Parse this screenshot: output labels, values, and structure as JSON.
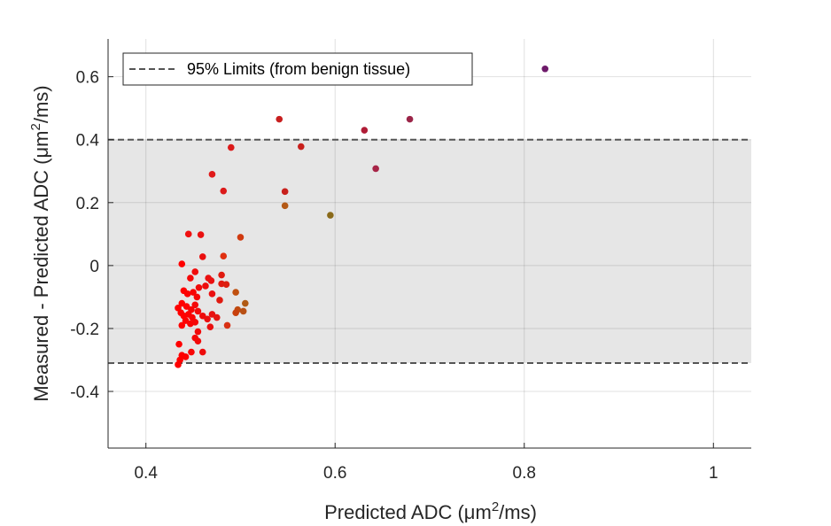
{
  "chart_data": {
    "type": "scatter",
    "title": "",
    "xlabel": {
      "pre": "Predicted ADC (μm",
      "sup": "2",
      "post": "/ms)"
    },
    "ylabel": {
      "pre": "Measured - Predicted ADC (μm",
      "sup": "2",
      "post": "/ms)"
    },
    "xlim": [
      0.36,
      1.04
    ],
    "ylim": [
      -0.58,
      0.72
    ],
    "x_ticks": [
      {
        "value": 0.4,
        "label": "0.4"
      },
      {
        "value": 0.6,
        "label": "0.6"
      },
      {
        "value": 0.8,
        "label": "0.8"
      },
      {
        "value": 1.0,
        "label": "1"
      }
    ],
    "y_ticks": [
      {
        "value": -0.4,
        "label": "-0.4"
      },
      {
        "value": -0.2,
        "label": "-0.2"
      },
      {
        "value": 0.0,
        "label": "0"
      },
      {
        "value": 0.2,
        "label": "0.2"
      },
      {
        "value": 0.4,
        "label": "0.4"
      },
      {
        "value": 0.6,
        "label": "0.6"
      }
    ],
    "grid": true,
    "limits": {
      "upper": 0.4,
      "lower": -0.31,
      "band_color": "#e6e6e6",
      "line_color": "#555555"
    },
    "legend": {
      "position": "top-left",
      "label": "95% Limits (from benign tissue)"
    },
    "colors": {
      "low": "#ff0000",
      "high": "#7a1a6e"
    },
    "points": [
      {
        "x": 0.822,
        "y": 0.625,
        "c": "#6e1a6a"
      },
      {
        "x": 0.679,
        "y": 0.465,
        "c": "#9b2548"
      },
      {
        "x": 0.631,
        "y": 0.43,
        "c": "#b01c36"
      },
      {
        "x": 0.643,
        "y": 0.308,
        "c": "#a72547"
      },
      {
        "x": 0.541,
        "y": 0.465,
        "c": "#c81f1f"
      },
      {
        "x": 0.564,
        "y": 0.378,
        "c": "#c8201c"
      },
      {
        "x": 0.547,
        "y": 0.235,
        "c": "#c8201c"
      },
      {
        "x": 0.547,
        "y": 0.19,
        "c": "#b45a16"
      },
      {
        "x": 0.595,
        "y": 0.16,
        "c": "#8a6a1a"
      },
      {
        "x": 0.49,
        "y": 0.375,
        "c": "#dc1a1a"
      },
      {
        "x": 0.47,
        "y": 0.29,
        "c": "#e01a1a"
      },
      {
        "x": 0.482,
        "y": 0.237,
        "c": "#dc1a1a"
      },
      {
        "x": 0.445,
        "y": 0.1,
        "c": "#f01010"
      },
      {
        "x": 0.458,
        "y": 0.098,
        "c": "#ea1010"
      },
      {
        "x": 0.5,
        "y": 0.09,
        "c": "#d03a10"
      },
      {
        "x": 0.438,
        "y": 0.005,
        "c": "#ff0000"
      },
      {
        "x": 0.482,
        "y": 0.03,
        "c": "#e03010"
      },
      {
        "x": 0.46,
        "y": 0.028,
        "c": "#ea1010"
      },
      {
        "x": 0.452,
        "y": -0.02,
        "c": "#f00c0c"
      },
      {
        "x": 0.447,
        "y": -0.04,
        "c": "#f50808"
      },
      {
        "x": 0.466,
        "y": -0.04,
        "c": "#ea1010"
      },
      {
        "x": 0.469,
        "y": -0.048,
        "c": "#ea1010"
      },
      {
        "x": 0.48,
        "y": -0.03,
        "c": "#e01a10"
      },
      {
        "x": 0.48,
        "y": -0.058,
        "c": "#e01a10"
      },
      {
        "x": 0.485,
        "y": -0.06,
        "c": "#dc2010"
      },
      {
        "x": 0.463,
        "y": -0.065,
        "c": "#ee0c0c"
      },
      {
        "x": 0.456,
        "y": -0.07,
        "c": "#f00a0a"
      },
      {
        "x": 0.44,
        "y": -0.08,
        "c": "#ff0000"
      },
      {
        "x": 0.444,
        "y": -0.09,
        "c": "#fc0202"
      },
      {
        "x": 0.45,
        "y": -0.085,
        "c": "#f80505"
      },
      {
        "x": 0.454,
        "y": -0.1,
        "c": "#f50808"
      },
      {
        "x": 0.47,
        "y": -0.09,
        "c": "#ea1010"
      },
      {
        "x": 0.495,
        "y": -0.085,
        "c": "#c05010"
      },
      {
        "x": 0.505,
        "y": -0.12,
        "c": "#b05a14"
      },
      {
        "x": 0.497,
        "y": -0.14,
        "c": "#c04a10"
      },
      {
        "x": 0.503,
        "y": -0.145,
        "c": "#b85014"
      },
      {
        "x": 0.495,
        "y": -0.15,
        "c": "#c8400c"
      },
      {
        "x": 0.478,
        "y": -0.11,
        "c": "#e01a10"
      },
      {
        "x": 0.438,
        "y": -0.12,
        "c": "#ff0000"
      },
      {
        "x": 0.443,
        "y": -0.13,
        "c": "#fc0202"
      },
      {
        "x": 0.448,
        "y": -0.14,
        "c": "#f80505"
      },
      {
        "x": 0.452,
        "y": -0.125,
        "c": "#f50808"
      },
      {
        "x": 0.434,
        "y": -0.135,
        "c": "#ff0000"
      },
      {
        "x": 0.437,
        "y": -0.15,
        "c": "#ff0000"
      },
      {
        "x": 0.44,
        "y": -0.16,
        "c": "#ff0000"
      },
      {
        "x": 0.445,
        "y": -0.155,
        "c": "#fc0202"
      },
      {
        "x": 0.449,
        "y": -0.165,
        "c": "#f80505"
      },
      {
        "x": 0.455,
        "y": -0.145,
        "c": "#f20a0a"
      },
      {
        "x": 0.46,
        "y": -0.16,
        "c": "#ee0c0c"
      },
      {
        "x": 0.465,
        "y": -0.17,
        "c": "#ea1010"
      },
      {
        "x": 0.47,
        "y": -0.155,
        "c": "#e81212"
      },
      {
        "x": 0.475,
        "y": -0.165,
        "c": "#e41612"
      },
      {
        "x": 0.442,
        "y": -0.175,
        "c": "#fc0202"
      },
      {
        "x": 0.447,
        "y": -0.185,
        "c": "#f80505"
      },
      {
        "x": 0.452,
        "y": -0.18,
        "c": "#f50808"
      },
      {
        "x": 0.438,
        "y": -0.19,
        "c": "#ff0000"
      },
      {
        "x": 0.468,
        "y": -0.195,
        "c": "#ea1010"
      },
      {
        "x": 0.486,
        "y": -0.19,
        "c": "#d83014"
      },
      {
        "x": 0.455,
        "y": -0.21,
        "c": "#f20a0a"
      },
      {
        "x": 0.452,
        "y": -0.23,
        "c": "#f50808"
      },
      {
        "x": 0.455,
        "y": -0.24,
        "c": "#f20a0a"
      },
      {
        "x": 0.435,
        "y": -0.25,
        "c": "#ff0000"
      },
      {
        "x": 0.448,
        "y": -0.275,
        "c": "#f80505"
      },
      {
        "x": 0.46,
        "y": -0.275,
        "c": "#ee0c0c"
      },
      {
        "x": 0.438,
        "y": -0.285,
        "c": "#ff0000"
      },
      {
        "x": 0.442,
        "y": -0.29,
        "c": "#fc0202"
      },
      {
        "x": 0.436,
        "y": -0.3,
        "c": "#ff0000"
      },
      {
        "x": 0.434,
        "y": -0.315,
        "c": "#ff0000"
      }
    ]
  }
}
